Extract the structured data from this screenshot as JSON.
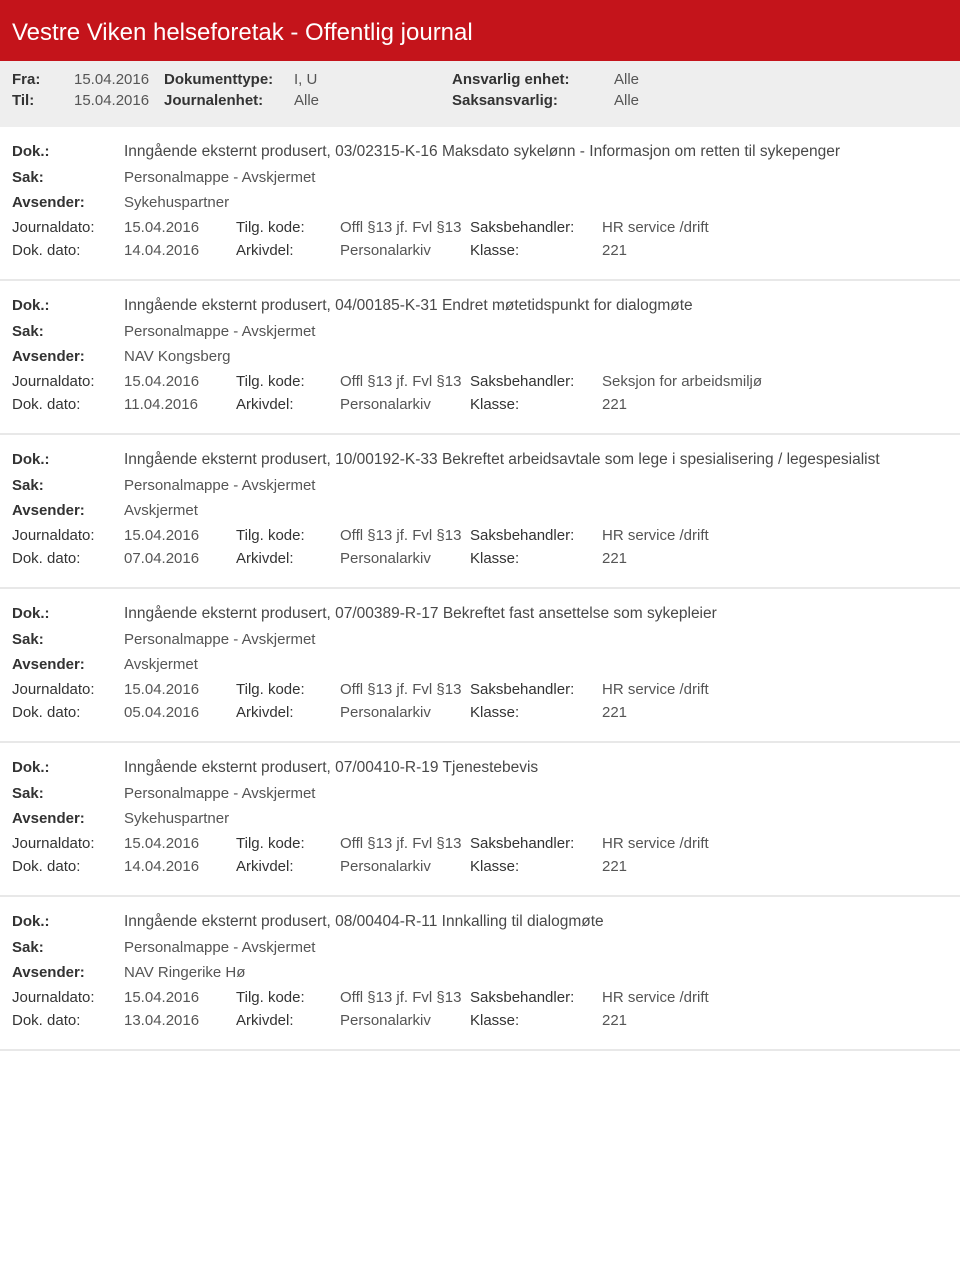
{
  "colors": {
    "brand_red": "#c4141b",
    "filter_bg": "#eeeeee",
    "text": "#333333",
    "text_muted": "#555555",
    "divider": "#e8e8e8"
  },
  "header": {
    "title": "Vestre Viken helseforetak - Offentlig journal"
  },
  "filters": {
    "fra_label": "Fra:",
    "fra_value": "15.04.2016",
    "til_label": "Til:",
    "til_value": "15.04.2016",
    "dokumenttype_label": "Dokumenttype:",
    "dokumenttype_value": "I, U",
    "journalenhet_label": "Journalenhet:",
    "journalenhet_value": "Alle",
    "ansvarlig_enhet_label": "Ansvarlig enhet:",
    "ansvarlig_enhet_value": "Alle",
    "saksansvarlig_label": "Saksansvarlig:",
    "saksansvarlig_value": "Alle"
  },
  "labels": {
    "dok": "Dok.:",
    "sak": "Sak:",
    "avsender": "Avsender:",
    "journaldato": "Journaldato:",
    "dok_dato": "Dok. dato:",
    "tilg_kode": "Tilg. kode:",
    "arkivdel": "Arkivdel:",
    "saksbehandler": "Saksbehandler:",
    "klasse": "Klasse:"
  },
  "entries": [
    {
      "dok": "Inngående eksternt produsert, 03/02315-K-16 Maksdato sykelønn - Informasjon om retten til sykepenger",
      "sak": "Personalmappe - Avskjermet",
      "avsender": "Sykehuspartner",
      "journaldato": "15.04.2016",
      "dok_dato": "14.04.2016",
      "tilg_kode": "Offl §13 jf. Fvl §13",
      "arkivdel": "Personalarkiv",
      "saksbehandler": "HR service /drift",
      "klasse": "221"
    },
    {
      "dok": "Inngående eksternt produsert, 04/00185-K-31 Endret møtetidspunkt for dialogmøte",
      "sak": "Personalmappe - Avskjermet",
      "avsender": "NAV Kongsberg",
      "journaldato": "15.04.2016",
      "dok_dato": "11.04.2016",
      "tilg_kode": "Offl §13 jf. Fvl §13",
      "arkivdel": "Personalarkiv",
      "saksbehandler": "Seksjon for arbeidsmiljø",
      "klasse": "221"
    },
    {
      "dok": "Inngående eksternt produsert, 10/00192-K-33 Bekreftet arbeidsavtale som lege i spesialisering / legespesialist",
      "sak": "Personalmappe - Avskjermet",
      "avsender": "Avskjermet",
      "journaldato": "15.04.2016",
      "dok_dato": "07.04.2016",
      "tilg_kode": "Offl §13 jf. Fvl §13",
      "arkivdel": "Personalarkiv",
      "saksbehandler": "HR service /drift",
      "klasse": "221"
    },
    {
      "dok": "Inngående eksternt produsert, 07/00389-R-17 Bekreftet fast ansettelse som sykepleier",
      "sak": "Personalmappe - Avskjermet",
      "avsender": "Avskjermet",
      "journaldato": "15.04.2016",
      "dok_dato": "05.04.2016",
      "tilg_kode": "Offl §13 jf. Fvl §13",
      "arkivdel": "Personalarkiv",
      "saksbehandler": "HR service /drift",
      "klasse": "221"
    },
    {
      "dok": "Inngående eksternt produsert, 07/00410-R-19 Tjenestebevis",
      "sak": "Personalmappe - Avskjermet",
      "avsender": "Sykehuspartner",
      "journaldato": "15.04.2016",
      "dok_dato": "14.04.2016",
      "tilg_kode": "Offl §13 jf. Fvl §13",
      "arkivdel": "Personalarkiv",
      "saksbehandler": "HR service /drift",
      "klasse": "221"
    },
    {
      "dok": "Inngående eksternt produsert, 08/00404-R-11 Innkalling til dialogmøte",
      "sak": "Personalmappe - Avskjermet",
      "avsender": "NAV Ringerike  Hø",
      "journaldato": "15.04.2016",
      "dok_dato": "13.04.2016",
      "tilg_kode": "Offl §13 jf. Fvl §13",
      "arkivdel": "Personalarkiv",
      "saksbehandler": "HR service /drift",
      "klasse": "221"
    }
  ]
}
